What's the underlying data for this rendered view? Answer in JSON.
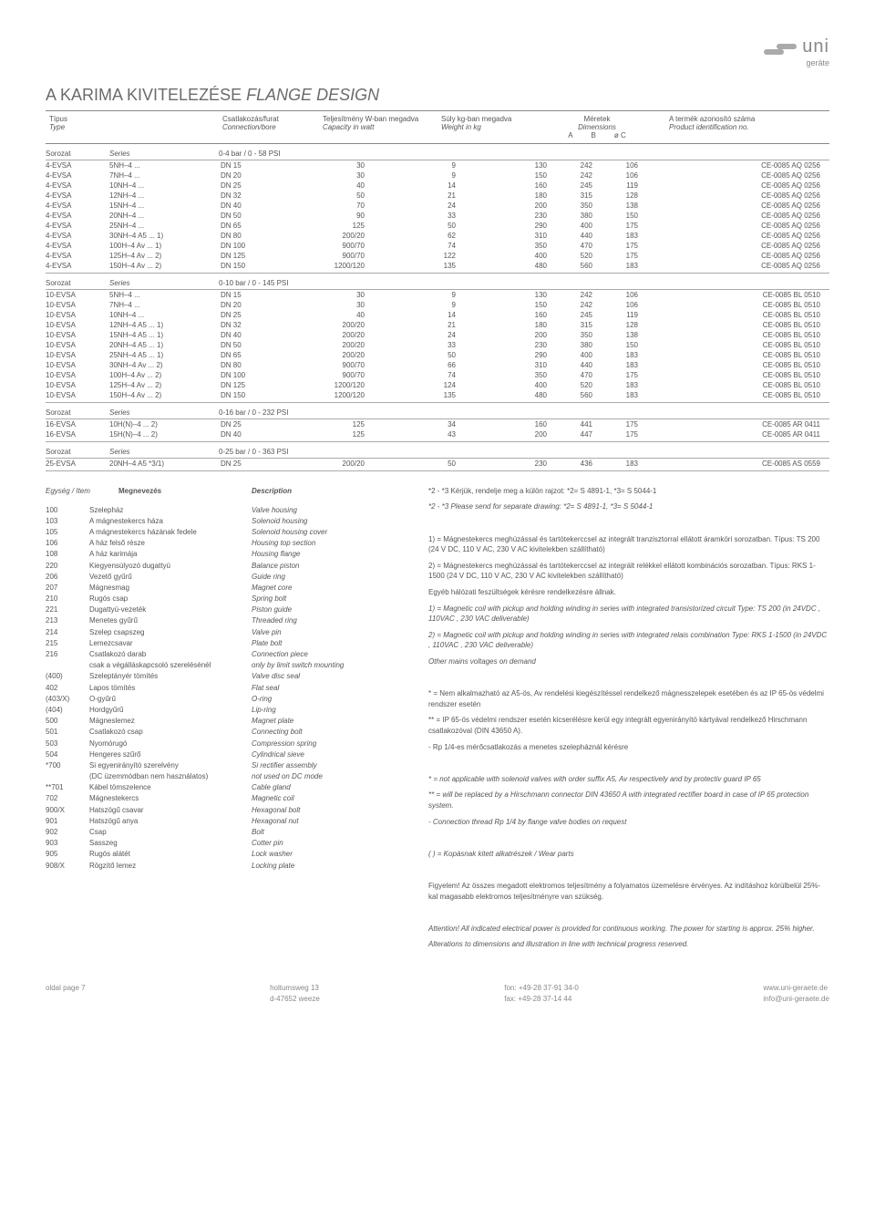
{
  "logo": {
    "name": "uni",
    "sub": "geräte"
  },
  "title": {
    "plain": "A KARIMA KIVITELEZÉSE ",
    "italic": "FLANGE DESIGN"
  },
  "header": {
    "c1a": "Típus",
    "c1b": "Type",
    "c2a": "Csatlakozás/furat",
    "c2b": "Connection/bore",
    "c3a": "Teljesítmény W-ban megadva",
    "c3b": "Capacity in watt",
    "c4a": "Súly kg-ban megadva",
    "c4b": "Weight in kg",
    "c5a": "Méretek",
    "c5b": "Dimensions",
    "dA": "A",
    "dB": "B",
    "dC": "ø C",
    "c6a": "A termék azonosító száma",
    "c6b": "Product identification no."
  },
  "sections": [
    {
      "label": "Sorozat",
      "labelI": "Series",
      "range": "0-4 bar / 0 - 58 PSI",
      "rows": [
        [
          "4-EVSA",
          "5NH–4 ...",
          "DN 15",
          "30",
          "9",
          "130",
          "242",
          "106",
          "CE-0085 AQ 0256"
        ],
        [
          "4-EVSA",
          "7NH–4 ...",
          "DN 20",
          "30",
          "9",
          "150",
          "242",
          "106",
          "CE-0085 AQ 0256"
        ],
        [
          "4-EVSA",
          "10NH–4 ...",
          "DN 25",
          "40",
          "14",
          "160",
          "245",
          "119",
          "CE-0085 AQ 0256"
        ],
        [
          "4-EVSA",
          "12NH–4 ...",
          "DN 32",
          "50",
          "21",
          "180",
          "315",
          "128",
          "CE-0085 AQ 0256"
        ],
        [
          "4-EVSA",
          "15NH–4 ...",
          "DN 40",
          "70",
          "24",
          "200",
          "350",
          "138",
          "CE-0085 AQ 0256"
        ],
        [
          "4-EVSA",
          "20NH–4 ...",
          "DN 50",
          "90",
          "33",
          "230",
          "380",
          "150",
          "CE-0085 AQ 0256"
        ],
        [
          "4-EVSA",
          "25NH–4 ...",
          "DN 65",
          "125",
          "50",
          "290",
          "400",
          "175",
          "CE-0085 AQ 0256"
        ],
        [
          "4-EVSA",
          "30NH–4 A5 ... 1)",
          "DN 80",
          "200/20",
          "62",
          "310",
          "440",
          "183",
          "CE-0085 AQ 0256"
        ],
        [
          "4-EVSA",
          "100H–4 Av ... 1)",
          "DN 100",
          "900/70",
          "74",
          "350",
          "470",
          "175",
          "CE-0085 AQ 0256"
        ],
        [
          "4-EVSA",
          "125H–4 Av ... 2)",
          "DN 125",
          "900/70",
          "122",
          "400",
          "520",
          "175",
          "CE-0085 AQ 0256"
        ],
        [
          "4-EVSA",
          "150H–4 Av ... 2)",
          "DN 150",
          "1200/120",
          "135",
          "480",
          "560",
          "183",
          "CE-0085 AQ 0256"
        ]
      ]
    },
    {
      "label": "Sorozat",
      "labelI": "Series",
      "range": "0-10 bar / 0 - 145 PSI",
      "rows": [
        [
          "10-EVSA",
          "5NH–4 ...",
          "DN 15",
          "30",
          "9",
          "130",
          "242",
          "106",
          "CE-0085 BL 0510"
        ],
        [
          "10-EVSA",
          "7NH–4 ...",
          "DN 20",
          "30",
          "9",
          "150",
          "242",
          "106",
          "CE-0085 BL 0510"
        ],
        [
          "10-EVSA",
          "10NH–4 ...",
          "DN 25",
          "40",
          "14",
          "160",
          "245",
          "119",
          "CE-0085 BL 0510"
        ],
        [
          "10-EVSA",
          "12NH–4 A5 ... 1)",
          "DN 32",
          "200/20",
          "21",
          "180",
          "315",
          "128",
          "CE-0085 BL 0510"
        ],
        [
          "10-EVSA",
          "15NH–4 A5 ... 1)",
          "DN 40",
          "200/20",
          "24",
          "200",
          "350",
          "138",
          "CE-0085 BL 0510"
        ],
        [
          "10-EVSA",
          "20NH–4 A5 ... 1)",
          "DN 50",
          "200/20",
          "33",
          "230",
          "380",
          "150",
          "CE-0085 BL 0510"
        ],
        [
          "10-EVSA",
          "25NH–4 A5 ... 1)",
          "DN 65",
          "200/20",
          "50",
          "290",
          "400",
          "183",
          "CE-0085 BL 0510"
        ],
        [
          "10-EVSA",
          "30NH–4 Av ... 2)",
          "DN 80",
          "900/70",
          "66",
          "310",
          "440",
          "183",
          "CE-0085 BL 0510"
        ],
        [
          "10-EVSA",
          "100H–4 Av ... 2)",
          "DN 100",
          "900/70",
          "74",
          "350",
          "470",
          "175",
          "CE-0085 BL 0510"
        ],
        [
          "10-EVSA",
          "125H–4 Av ... 2)",
          "DN 125",
          "1200/120",
          "124",
          "400",
          "520",
          "183",
          "CE-0085 BL 0510"
        ],
        [
          "10-EVSA",
          "150H–4 Av ... 2)",
          "DN 150",
          "1200/120",
          "135",
          "480",
          "560",
          "183",
          "CE-0085 BL 0510"
        ]
      ]
    },
    {
      "label": "Sorozat",
      "labelI": "Series",
      "range": "0-16 bar / 0 - 232 PSI",
      "rows": [
        [
          "16-EVSA",
          "10H(N)–4 ... 2)",
          "DN 25",
          "125",
          "34",
          "160",
          "441",
          "175",
          "CE-0085 AR 0411"
        ],
        [
          "16-EVSA",
          "15H(N)–4 ... 2)",
          "DN 40",
          "125",
          "43",
          "200",
          "447",
          "175",
          "CE-0085 AR 0411"
        ]
      ]
    },
    {
      "label": "Sorozat",
      "labelI": "Series",
      "range": "0-25 bar / 0 - 363 PSI",
      "rows": [
        [
          "25-EVSA",
          "20NH–4 A5 *3/1)",
          "DN 25",
          "200/20",
          "50",
          "230",
          "436",
          "183",
          "CE-0085 AS 0559"
        ]
      ]
    }
  ],
  "itemHeader": {
    "c1": "Egység / Item",
    "c2": "Megnevezés",
    "c3": "Description"
  },
  "items": [
    [
      "100",
      "Szelepház",
      "Valve housing"
    ],
    [
      "103",
      "A mágnestekercs háza",
      "Solenoid housing"
    ],
    [
      "105",
      "A mágnestekercs házának fedele",
      "Solenoid housing cover"
    ],
    [
      "106",
      "A ház felső része",
      "Housing top section"
    ],
    [
      "108",
      "A ház karimája",
      "Housing flange"
    ],
    [
      "220",
      "Kiegyensúlyozó dugattyú",
      "Balance piston"
    ],
    [
      "206",
      "Vezető gyűrű",
      "Guide ring"
    ],
    [
      "207",
      "Mágnesmag",
      "Magnet core"
    ],
    [
      "210",
      "Rugós csap",
      "Spring bolt"
    ],
    [
      "221",
      "Dugattyú-vezeték",
      "Piston guide"
    ],
    [
      "213",
      "Menetes gyűrű",
      "Threaded ring"
    ],
    [
      "214",
      "Szelep csapszeg",
      "Valve pin"
    ],
    [
      "215",
      "Lemezcsavar",
      "Plate bolt"
    ],
    [
      "216",
      "Csatlakozó darab",
      "Connection piece"
    ],
    [
      "",
      "csak a végálláskapcsoló szerelésénél",
      "only by limit switch mounting"
    ],
    [
      "(400)",
      "Szeleptányér tömítés",
      "Valve disc seal"
    ],
    [
      "402",
      "Lapos tömítés",
      "Flat seal"
    ],
    [
      "(403/X)",
      "O-gyűrű",
      "O-ring"
    ],
    [
      "(404)",
      "Hordgyűrű",
      "Lip-ring"
    ],
    [
      "500",
      "Mágneslemez",
      "Magnet plate"
    ],
    [
      "501",
      "Csatlakozó csap",
      "Connecting bolt"
    ],
    [
      "503",
      "Nyomórugó",
      "Compression spring"
    ],
    [
      "504",
      "Hengeres szűrő",
      "Cylindrical sieve"
    ],
    [
      "*700",
      "Si egyenirányító szerelvény",
      "Si rectifier assembly"
    ],
    [
      "",
      "(DC üzemmódban nem használatos)",
      "not used on DC mode"
    ],
    [
      "**701",
      "Kábel tömszelence",
      "Cable gland"
    ],
    [
      "702",
      "Mágnestekercs",
      "Magnetic coil"
    ],
    [
      "900/X",
      "Hatszögű csavar",
      "Hexagonal bolt"
    ],
    [
      "901",
      "Hatszögű anya",
      "Hexagonal nut"
    ],
    [
      "902",
      "Csap",
      "Bolt"
    ],
    [
      "903",
      "Sasszeg",
      "Cotter pin"
    ],
    [
      "905",
      "Rugós alátét",
      "Lock washer"
    ],
    [
      "908/X",
      "Rögzítő lemez",
      "Locking plate"
    ]
  ],
  "notes": [
    "*2 - *3 Kérjük, rendelje meg a külön rajzot: *2= S 4891-1, *3= S 5044-1",
    "*2 - *3 Please send for separate drawing: *2= S 4891-1, *3= S 5044-1",
    "",
    "1) = Mágnestekercs meghúzással és tartótekerccsel az integrált tranzisztorral ellátott áramköri sorozatban. Típus: TS 200 (24 V DC, 110 V AC, 230 V AC kivitelekben szállítható)",
    "2) = Mágnestekercs meghúzással és tartótekerccsel az integrált relékkel ellátott kombinációs sorozatban. Típus: RKS 1-1500 (24 V DC, 110 V AC, 230 V AC kivitelekben szállítható)",
    "Egyéb hálózati feszültségek kérésre rendelkezésre állnak.",
    "1) = Magnetic coil with pickup and holding winding in series with integrated transistorized circuit Type: TS 200  (in 24VDC , 110VAC , 230 VAC deliverable)",
    "2) = Magnetic coil with pickup and holding winding in series with integrated relais combination Type: RKS 1-1500  (in 24VDC , 110VAC , 230 VAC deliverable)",
    "Other mains voltages on demand",
    "",
    "*   = Nem alkalmazható az A5-ös, Av rendelési kiegészítéssel rendelkező mágnesszelepek esetében és az IP 65-ös védelmi rendszer esetén",
    "**  = IP 65-ös védelmi rendszer esetén kicserélésre kerül egy integrált egyenirányító kártyával rendelkező Hirschmann csatlakozóval (DIN 43650 A).",
    "-   Rp 1/4-es mérőcsatlakozás a menetes szelepháznál kérésre",
    "",
    "*   = not applicable with solenoid valves with order suffix A5, Av respectively and by protectiv guard IP 65",
    "**  = will be replaced by a Hirschmann connector DIN 43650 A with integrated rectifier board in case of IP 65 protection system.",
    "-   Connection thread Rp 1/4 by flange valve bodies on request",
    "",
    "( ) = Kopásnak kitett alkatrészek / Wear parts",
    "",
    "Figyelem! Az összes megadott elektromos teljesítmény a folyamatos üzemelésre érvényes. Az indításhoz körülbelül 25%-kal magasabb elektromos teljesítményre van szükség.",
    "",
    "Attention! All indicated electrical power is provided for continuous working. The power for starting is approx. 25% higher.",
    "Alterations to dimensions and illustration in line with technical progress reserved."
  ],
  "footer": {
    "page": "oldal page 7",
    "addr1": "holtumsweg 13",
    "addr2": "d-47652 weeze",
    "tel": "fon: +49-28 37-91 34-0",
    "fax": "fax: +49-28 37-14 44",
    "web": "www.uni-geraete.de",
    "mail": "info@uni-geraete.de"
  }
}
